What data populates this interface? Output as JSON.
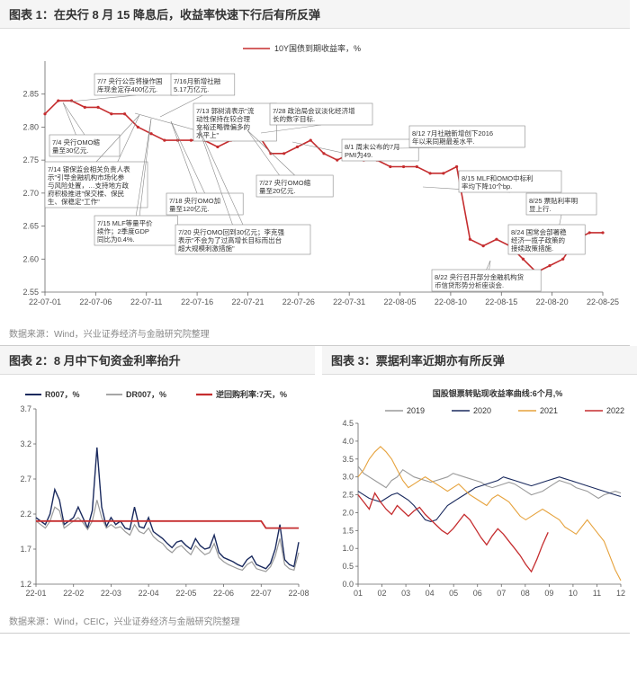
{
  "chart1": {
    "title": "图表 1：在央行 8 月 15 降息后，收益率快速下行后有所反弹",
    "source": "数据来源：Wind，兴业证券经济与金融研究院整理",
    "type": "line",
    "legend": "10Y国债到期收益率，%",
    "line_color": "#c52d2f",
    "background_color": "#ffffff",
    "ylim": [
      2.55,
      2.9
    ],
    "yticks": [
      2.55,
      2.6,
      2.65,
      2.7,
      2.75,
      2.8,
      2.85
    ],
    "xlabels": [
      "22-07-01",
      "22-07-06",
      "22-07-11",
      "22-07-16",
      "22-07-21",
      "22-07-26",
      "22-07-31",
      "22-08-05",
      "22-08-10",
      "22-08-15",
      "22-08-20",
      "22-08-25"
    ],
    "y": [
      2.82,
      2.84,
      2.84,
      2.83,
      2.83,
      2.82,
      2.82,
      2.8,
      2.79,
      2.78,
      2.78,
      2.78,
      2.78,
      2.77,
      2.78,
      2.79,
      2.79,
      2.76,
      2.76,
      2.77,
      2.78,
      2.76,
      2.75,
      2.76,
      2.75,
      2.75,
      2.74,
      2.74,
      2.74,
      2.73,
      2.73,
      2.74,
      2.63,
      2.62,
      2.63,
      2.62,
      2.6,
      2.58,
      2.59,
      2.6,
      2.63,
      2.64,
      2.64
    ],
    "annotations": [
      {
        "text": [
          "7/7 央行公告将操作国",
          "库现金定存400亿元."
        ],
        "bx": 95,
        "by": 42,
        "ptx": 68,
        "pty": 73
      },
      {
        "text": [
          "7/4 央行OMO缩",
          "量至30亿元."
        ],
        "bx": 45,
        "by": 110,
        "ptx": 60,
        "pty": 74
      },
      {
        "text": [
          "7/14 银保监会相关负责人表",
          "示\"引导金融机构市场化参",
          "与风险处置，…支持地方政",
          "府积极推进\"保交楼、保民",
          "生、保稳定\"工作\""
        ],
        "bx": 40,
        "by": 140,
        "ptx": 145,
        "pty": 88
      },
      {
        "text": [
          "7/15 MLF等量平价",
          "续作；2季度GDP",
          "同比为0.4%."
        ],
        "bx": 95,
        "by": 200,
        "ptx": 158,
        "pty": 92
      },
      {
        "text": [
          "7/16月新增社融",
          "5.17万亿元."
        ],
        "bx": 180,
        "by": 42,
        "ptx": 168,
        "pty": 90
      },
      {
        "text": [
          "7/13 郭树清表示\"流",
          "动性保持在较合理",
          "充裕还略微偏多的",
          "水平上\""
        ],
        "bx": 205,
        "by": 75,
        "ptx": 140,
        "pty": 86
      },
      {
        "text": [
          "7/18 央行OMO加",
          "量至120亿元."
        ],
        "bx": 175,
        "by": 175,
        "ptx": 180,
        "pty": 95
      },
      {
        "text": [
          "7/20 央行OMO回到30亿元；李克强",
          "表示\"不会为了过高增长目标而出台",
          "超大规模刺激措施\""
        ],
        "bx": 185,
        "by": 210,
        "ptx": 210,
        "pty": 100
      },
      {
        "text": [
          "7/28 政治局会议淡化经济增",
          "长的数字目标."
        ],
        "bx": 290,
        "by": 75,
        "ptx": 280,
        "pty": 108
      },
      {
        "text": [
          "7/27 央行OMO缩",
          "量至20亿元."
        ],
        "bx": 275,
        "by": 155,
        "ptx": 265,
        "pty": 105
      },
      {
        "text": [
          "8/1 周末公布的7月",
          "PMI为49."
        ],
        "bx": 370,
        "by": 115,
        "ptx": 315,
        "pty": 118
      },
      {
        "text": [
          "8/12 7月社融新增创下2016",
          "年以来同期最差水平."
        ],
        "bx": 445,
        "by": 100,
        "ptx": 430,
        "pty": 125
      },
      {
        "text": [
          "8/15 MLF和OMO中标利",
          "率均下降10个bp."
        ],
        "bx": 500,
        "by": 150,
        "ptx": 460,
        "pty": 168
      },
      {
        "text": [
          "8/25 票贴利率明",
          "显上行."
        ],
        "bx": 575,
        "by": 175,
        "ptx": 610,
        "pty": 219
      },
      {
        "text": [
          "8/24 国常会部署稳",
          "经济一揽子政策的",
          "接续政策措施."
        ],
        "bx": 555,
        "by": 210,
        "ptx": 580,
        "pty": 238
      },
      {
        "text": [
          "8/22 央行召开部分金融机构货",
          "币信贷形势分析座谈会."
        ],
        "bx": 470,
        "by": 260,
        "ptx": 535,
        "pty": 250
      }
    ]
  },
  "chart2": {
    "title": "图表 2：8 月中下旬资金利率抬升",
    "type": "line",
    "ylim": [
      1.2,
      3.7
    ],
    "yticks": [
      1.2,
      1.7,
      2.2,
      2.7,
      3.2,
      3.7
    ],
    "xlabels": [
      "22-01",
      "22-02",
      "22-03",
      "22-04",
      "22-05",
      "22-06",
      "22-07",
      "22-08"
    ],
    "series": [
      {
        "name": "R007，%",
        "color": "#1a2a5e",
        "width": 1.4,
        "y": [
          2.15,
          2.1,
          2.05,
          2.2,
          2.55,
          2.4,
          2.05,
          2.1,
          2.15,
          2.3,
          2.15,
          2.0,
          2.25,
          3.15,
          2.3,
          2.02,
          2.15,
          2.05,
          2.1,
          2.0,
          1.98,
          2.3,
          2.02,
          2.0,
          2.15,
          1.95,
          1.9,
          1.85,
          1.78,
          1.72,
          1.8,
          1.82,
          1.75,
          1.7,
          1.85,
          1.75,
          1.7,
          1.72,
          1.9,
          1.65,
          1.58,
          1.55,
          1.52,
          1.48,
          1.45,
          1.55,
          1.6,
          1.48,
          1.45,
          1.42,
          1.5,
          1.7,
          2.05,
          1.55,
          1.48,
          1.45,
          1.8
        ]
      },
      {
        "name": "DR007，%",
        "color": "#9a9a9a",
        "width": 1.2,
        "y": [
          2.1,
          2.05,
          2.0,
          2.1,
          2.3,
          2.25,
          2.0,
          2.05,
          2.1,
          2.15,
          2.08,
          1.98,
          2.1,
          2.4,
          2.15,
          2.0,
          2.05,
          2.0,
          2.02,
          1.95,
          1.9,
          2.05,
          1.95,
          1.92,
          2.0,
          1.88,
          1.82,
          1.78,
          1.7,
          1.65,
          1.72,
          1.75,
          1.68,
          1.62,
          1.75,
          1.68,
          1.62,
          1.65,
          1.78,
          1.58,
          1.52,
          1.48,
          1.45,
          1.42,
          1.4,
          1.48,
          1.52,
          1.42,
          1.4,
          1.38,
          1.45,
          1.6,
          1.85,
          1.48,
          1.42,
          1.4,
          1.65
        ]
      },
      {
        "name": "逆回购利率:7天，%",
        "color": "#c52d2f",
        "width": 1.8,
        "y": [
          2.1,
          2.1,
          2.1,
          2.1,
          2.1,
          2.1,
          2.1,
          2.1,
          2.1,
          2.1,
          2.1,
          2.1,
          2.1,
          2.1,
          2.1,
          2.1,
          2.1,
          2.1,
          2.1,
          2.1,
          2.1,
          2.1,
          2.1,
          2.1,
          2.1,
          2.1,
          2.1,
          2.1,
          2.1,
          2.1,
          2.1,
          2.1,
          2.1,
          2.1,
          2.1,
          2.1,
          2.1,
          2.1,
          2.1,
          2.1,
          2.1,
          2.1,
          2.1,
          2.1,
          2.1,
          2.1,
          2.1,
          2.1,
          2.1,
          2.0,
          2.0,
          2.0,
          2.0,
          2.0,
          2.0,
          2.0,
          2.0
        ]
      }
    ]
  },
  "chart3": {
    "title": "图表 3：票据利率近期亦有所反弹",
    "legend_title": "国股银票转贴现收益率曲线:6个月,%",
    "type": "line",
    "ylim": [
      0.0,
      4.5
    ],
    "yticks": [
      0.0,
      0.5,
      1.0,
      1.5,
      2.0,
      2.5,
      3.0,
      3.5,
      4.0,
      4.5
    ],
    "xlabels": [
      "01",
      "02",
      "03",
      "04",
      "05",
      "06",
      "07",
      "08",
      "09",
      "10",
      "11",
      "12"
    ],
    "series": [
      {
        "name": "2019",
        "color": "#9a9a9a",
        "width": 1.1,
        "y": [
          3.3,
          3.1,
          3.0,
          2.9,
          2.8,
          2.7,
          2.9,
          3.0,
          3.2,
          3.1,
          3.0,
          2.95,
          2.9,
          2.85,
          2.9,
          2.95,
          3.0,
          3.1,
          3.05,
          3.0,
          2.95,
          2.9,
          2.85,
          2.75,
          2.7,
          2.75,
          2.8,
          2.85,
          2.8,
          2.7,
          2.6,
          2.5,
          2.55,
          2.6,
          2.7,
          2.8,
          2.9,
          2.85,
          2.8,
          2.7,
          2.65,
          2.6,
          2.5,
          2.4,
          2.5,
          2.55,
          2.6,
          2.55
        ]
      },
      {
        "name": "2020",
        "color": "#1a2a5e",
        "width": 1.1,
        "y": [
          2.6,
          2.5,
          2.4,
          2.35,
          2.3,
          2.4,
          2.5,
          2.55,
          2.45,
          2.35,
          2.2,
          2.0,
          1.8,
          1.75,
          1.8,
          2.0,
          2.2,
          2.3,
          2.4,
          2.5,
          2.6,
          2.7,
          2.75,
          2.8,
          2.85,
          2.9,
          3.0,
          2.95,
          2.9,
          2.85,
          2.8,
          2.75,
          2.8,
          2.85,
          2.9,
          2.95,
          3.0,
          2.95,
          2.9,
          2.85,
          2.8,
          2.75,
          2.7,
          2.65,
          2.6,
          2.55,
          2.5,
          2.45
        ]
      },
      {
        "name": "2021",
        "color": "#e6a23c",
        "width": 1.1,
        "y": [
          3.0,
          3.2,
          3.5,
          3.7,
          3.85,
          3.7,
          3.5,
          3.2,
          2.9,
          2.7,
          2.8,
          2.9,
          3.0,
          2.9,
          2.8,
          2.7,
          2.6,
          2.7,
          2.8,
          2.65,
          2.5,
          2.4,
          2.3,
          2.2,
          2.4,
          2.5,
          2.4,
          2.3,
          2.1,
          1.9,
          1.8,
          1.9,
          2.0,
          2.1,
          2.0,
          1.9,
          1.8,
          1.6,
          1.5,
          1.4,
          1.6,
          1.8,
          1.6,
          1.4,
          1.2,
          0.8,
          0.4,
          0.1
        ]
      },
      {
        "name": "2022",
        "color": "#c52d2f",
        "width": 1.3,
        "y": [
          2.5,
          2.3,
          2.1,
          2.55,
          2.3,
          2.1,
          1.95,
          2.2,
          2.05,
          1.9,
          2.05,
          2.15,
          1.95,
          1.8,
          1.65,
          1.5,
          1.4,
          1.55,
          1.75,
          1.95,
          1.8,
          1.55,
          1.3,
          1.1,
          1.35,
          1.55,
          1.4,
          1.2,
          1.0,
          0.8,
          0.55,
          0.35,
          0.7,
          1.1,
          1.45
        ]
      }
    ]
  },
  "source_bottom": "数据来源：Wind，CEIC，兴业证券经济与金融研究院整理"
}
